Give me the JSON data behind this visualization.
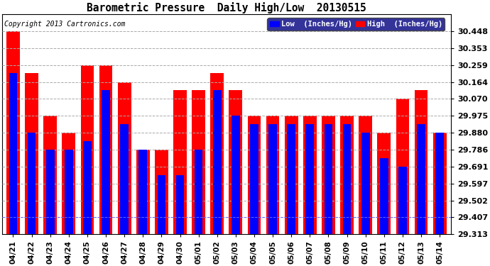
{
  "title": "Barometric Pressure  Daily High/Low  20130515",
  "copyright": "Copyright 2013 Cartronics.com",
  "legend_low": "Low  (Inches/Hg)",
  "legend_high": "High  (Inches/Hg)",
  "low_color": "#0000FF",
  "high_color": "#FF0000",
  "background_color": "#FFFFFF",
  "grid_color": "#AAAAAA",
  "ylim_min": 29.313,
  "ylim_max": 30.543,
  "yticks": [
    29.313,
    29.407,
    29.502,
    29.597,
    29.691,
    29.786,
    29.88,
    29.975,
    30.07,
    30.164,
    30.259,
    30.353,
    30.448
  ],
  "dates": [
    "04/21",
    "04/22",
    "04/23",
    "04/24",
    "04/25",
    "04/26",
    "04/27",
    "04/28",
    "04/29",
    "04/30",
    "05/01",
    "05/02",
    "05/03",
    "05/04",
    "05/05",
    "05/06",
    "05/07",
    "05/08",
    "05/09",
    "05/10",
    "05/11",
    "05/12",
    "05/13",
    "05/14"
  ],
  "high_values": [
    30.448,
    30.212,
    29.975,
    29.88,
    30.259,
    30.259,
    30.164,
    29.786,
    29.786,
    30.117,
    30.117,
    30.212,
    30.117,
    29.975,
    29.975,
    29.975,
    29.975,
    29.975,
    29.975,
    29.975,
    29.88,
    30.07,
    30.117,
    29.88
  ],
  "low_values": [
    30.212,
    29.88,
    29.786,
    29.786,
    29.833,
    30.117,
    29.928,
    29.786,
    29.644,
    29.644,
    29.786,
    30.117,
    29.975,
    29.928,
    29.928,
    29.928,
    29.928,
    29.928,
    29.928,
    29.88,
    29.738,
    29.691,
    29.928,
    29.88
  ]
}
